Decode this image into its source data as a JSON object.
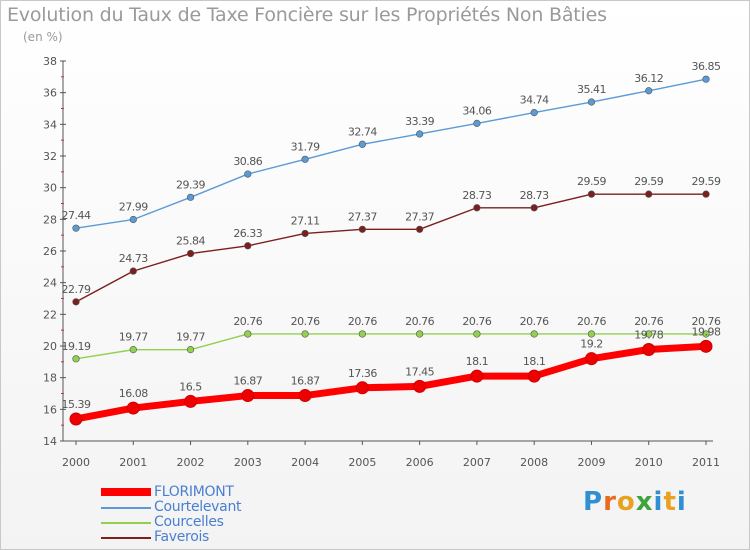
{
  "title": "Evolution du Taux de Taxe Foncière sur les Propriétés Non Bâties",
  "subtitle": "(en %)",
  "brand": {
    "letters": [
      "P",
      "r",
      "o",
      "x",
      "i",
      "t",
      "i"
    ],
    "colors": [
      "#2f8fd0",
      "#e86b1f",
      "#e8a21f",
      "#3fa23a",
      "#2f8fd0",
      "#e8a21f",
      "#2f8fd0"
    ]
  },
  "chart_data": {
    "type": "line",
    "title": "Evolution du Taux de Taxe Foncière sur les Propriétés Non Bâties",
    "ylabel": "(en %)",
    "xlabel": "",
    "x": [
      "2000",
      "2001",
      "2002",
      "2003",
      "2004",
      "2005",
      "2006",
      "2007",
      "2008",
      "2009",
      "2010",
      "2011"
    ],
    "ylim": [
      14,
      38
    ],
    "yticks": [
      "14",
      "16",
      "18",
      "20",
      "22",
      "24",
      "26",
      "28",
      "30",
      "32",
      "34",
      "36",
      "38"
    ],
    "grid": false,
    "legend_position": "bottom-left",
    "series": [
      {
        "name": "FLORIMONT",
        "color": "#ff0000",
        "values": [
          15.39,
          16.08,
          16.5,
          16.87,
          16.87,
          17.36,
          17.45,
          18.1,
          18.1,
          19.2,
          19.78,
          19.98
        ],
        "labels": [
          "15.39",
          "16.08",
          "16.5",
          "16.87",
          "16.87",
          "17.36",
          "17.45",
          "18.1",
          "18.1",
          "19.2",
          "19.78",
          "19.98"
        ]
      },
      {
        "name": "Courtelevant",
        "color": "#5b9bd5",
        "values": [
          27.44,
          27.99,
          29.39,
          30.86,
          31.79,
          32.74,
          33.39,
          34.06,
          34.74,
          35.41,
          36.12,
          36.85
        ],
        "labels": [
          "27.44",
          "27.99",
          "29.39",
          "30.86",
          "31.79",
          "32.74",
          "33.39",
          "34.06",
          "34.74",
          "35.41",
          "36.12",
          "36.85"
        ]
      },
      {
        "name": "Courcelles",
        "color": "#92d050",
        "values": [
          19.19,
          19.77,
          19.77,
          20.76,
          20.76,
          20.76,
          20.76,
          20.76,
          20.76,
          20.76,
          20.76,
          20.76
        ],
        "labels": [
          "19.19",
          "19.77",
          "19.77",
          "20.76",
          "20.76",
          "20.76",
          "20.76",
          "20.76",
          "20.76",
          "20.76",
          "20.76",
          "20.76"
        ]
      },
      {
        "name": "Faverois",
        "color": "#7b1f1f",
        "values": [
          22.79,
          24.73,
          25.84,
          26.33,
          27.11,
          27.37,
          27.37,
          28.73,
          28.73,
          29.59,
          29.59,
          29.59
        ],
        "labels": [
          "22.79",
          "24.73",
          "25.84",
          "26.33",
          "27.11",
          "27.37",
          "27.37",
          "28.73",
          "28.73",
          "29.59",
          "29.59",
          "29.59"
        ]
      }
    ]
  }
}
